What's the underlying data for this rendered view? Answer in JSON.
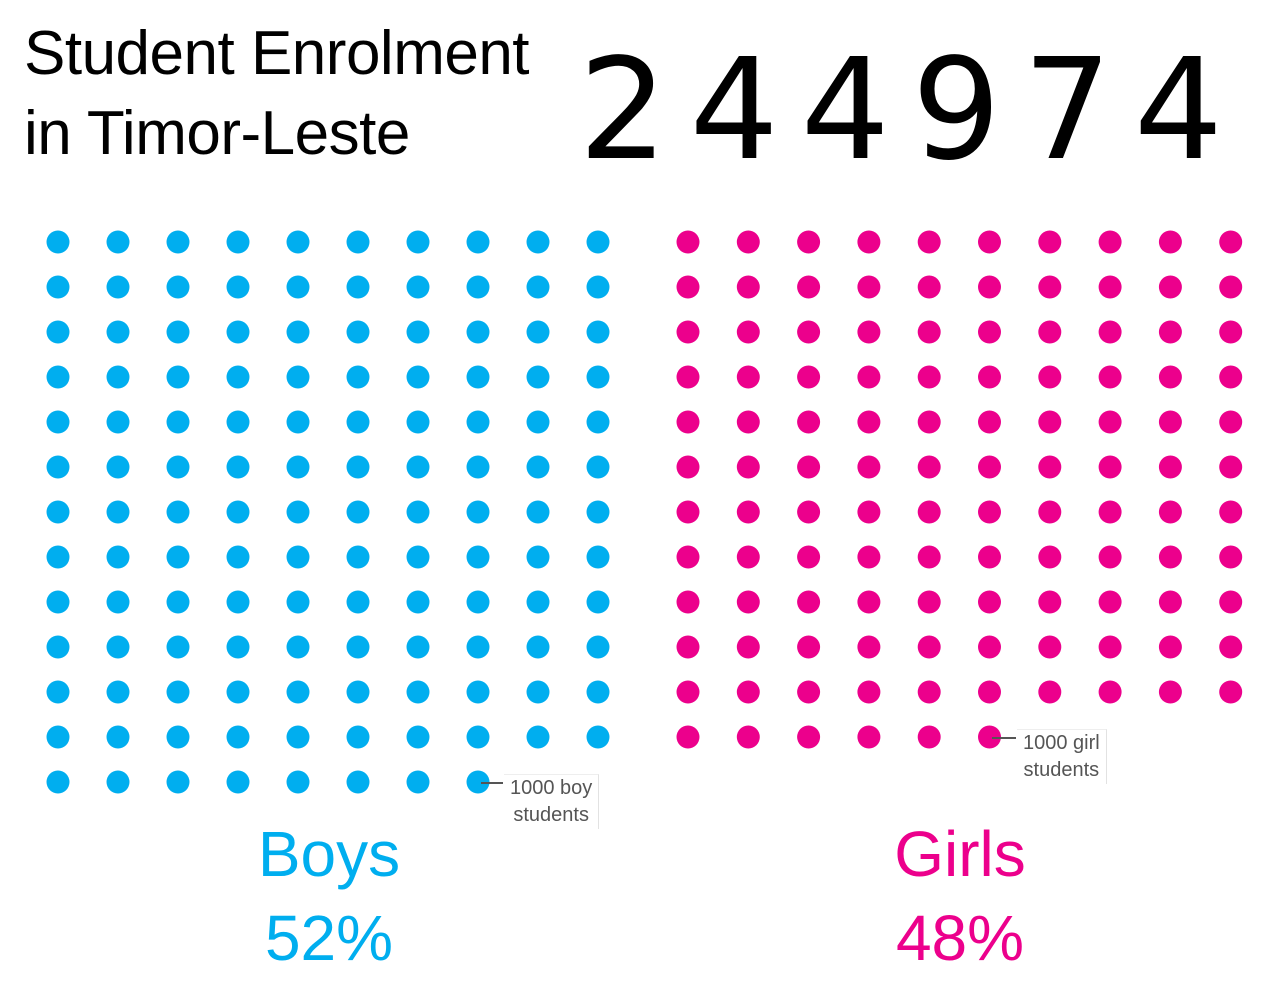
{
  "header": {
    "title_line1": "Student Enrolment",
    "title_line2": "in Timor-Leste",
    "total_enrolment": "244974"
  },
  "colors": {
    "boys": "#00AEEF",
    "girls": "#EC008C",
    "text": "#000000",
    "callout_text": "#555555"
  },
  "chart_data": {
    "type": "dot-matrix",
    "title": "Student Enrolment in Timor-Leste",
    "total": 244974,
    "unit_per_dot": 1000,
    "dots_per_row": 10,
    "series": [
      {
        "name": "Boys",
        "dots": 128,
        "percent_label": "52%",
        "percent": 52,
        "color": "#00AEEF",
        "annotation": "1000 boy students"
      },
      {
        "name": "Girls",
        "dots": 116,
        "percent_label": "48%",
        "percent": 48,
        "color": "#EC008C",
        "annotation": "1000 girl students"
      }
    ]
  },
  "boys": {
    "label": "Boys",
    "percent": "52%",
    "callout_line1": "1000 boy",
    "callout_line2": "students"
  },
  "girls": {
    "label": "Girls",
    "percent": "48%",
    "callout_line1": "1000 girl",
    "callout_line2": "students"
  }
}
